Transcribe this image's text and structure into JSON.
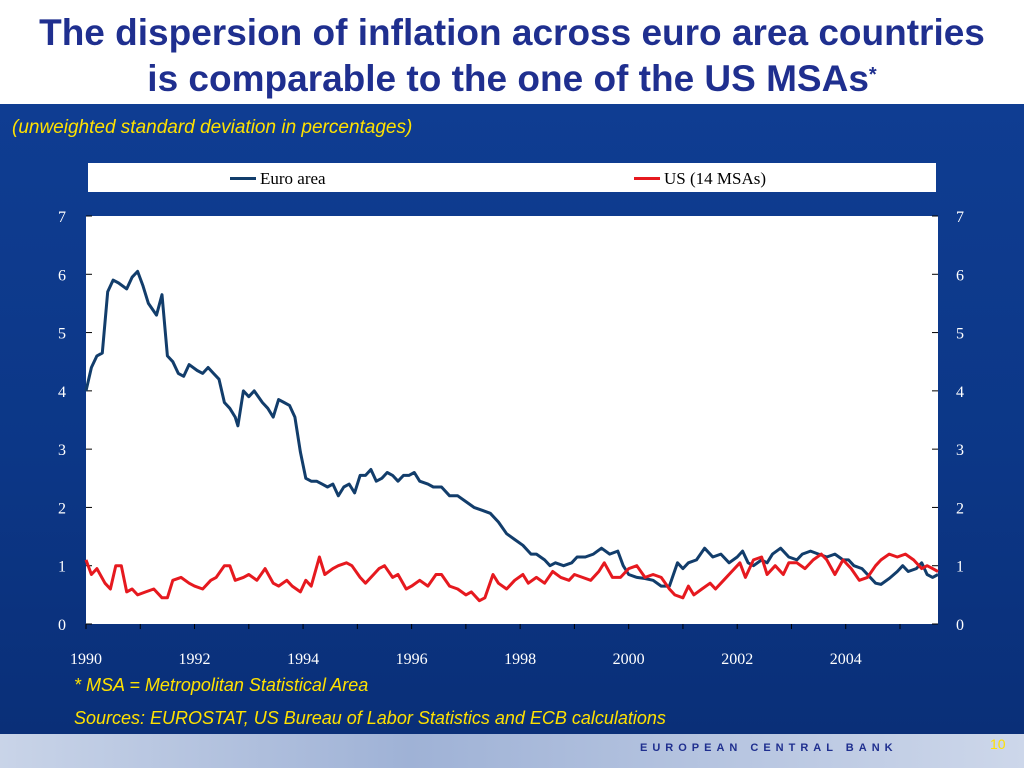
{
  "slide": {
    "title_line1": "The dispersion of inflation across euro area countries",
    "title_line2": "is comparable to the one of the US MSAs",
    "title_sup": "*",
    "subtitle": "(unweighted standard deviation in percentages)",
    "footnote": "* MSA = Metropolitan Statistical Area",
    "sources": "Sources: EUROSTAT, US Bureau of Labor Statistics and ECB calculations",
    "brand": "EUROPEAN CENTRAL BANK",
    "page_number": "10",
    "colors": {
      "title": "#1f2f8f",
      "background": "#0d3a8c",
      "yellow_text": "#ffe100"
    }
  },
  "chart_data": {
    "type": "line",
    "title": "",
    "xlabel": "",
    "ylabel": "",
    "ylim": [
      0,
      7
    ],
    "xlim": [
      1990,
      2005.7
    ],
    "y_ticks": [
      0,
      1,
      2,
      3,
      4,
      5,
      6,
      7
    ],
    "x_tick_labels": [
      "1990",
      "1992",
      "1994",
      "1996",
      "1998",
      "2000",
      "2002",
      "2004"
    ],
    "grid": false,
    "legend": "top",
    "series": [
      {
        "name": "Euro area",
        "color": "#123d6b",
        "points": [
          [
            1990.0,
            4.0
          ],
          [
            1990.1,
            4.4
          ],
          [
            1990.2,
            4.6
          ],
          [
            1990.3,
            4.65
          ],
          [
            1990.4,
            5.7
          ],
          [
            1990.5,
            5.9
          ],
          [
            1990.6,
            5.85
          ],
          [
            1990.75,
            5.75
          ],
          [
            1990.85,
            5.95
          ],
          [
            1990.95,
            6.05
          ],
          [
            1991.05,
            5.8
          ],
          [
            1991.15,
            5.5
          ],
          [
            1991.3,
            5.3
          ],
          [
            1991.4,
            5.65
          ],
          [
            1991.5,
            4.6
          ],
          [
            1991.6,
            4.5
          ],
          [
            1991.7,
            4.3
          ],
          [
            1991.8,
            4.25
          ],
          [
            1991.9,
            4.45
          ],
          [
            1992.05,
            4.35
          ],
          [
            1992.15,
            4.3
          ],
          [
            1992.25,
            4.4
          ],
          [
            1992.35,
            4.3
          ],
          [
            1992.45,
            4.2
          ],
          [
            1992.55,
            3.8
          ],
          [
            1992.65,
            3.7
          ],
          [
            1992.75,
            3.55
          ],
          [
            1992.8,
            3.4
          ],
          [
            1992.9,
            4.0
          ],
          [
            1993.0,
            3.9
          ],
          [
            1993.1,
            4.0
          ],
          [
            1993.25,
            3.8
          ],
          [
            1993.35,
            3.7
          ],
          [
            1993.45,
            3.55
          ],
          [
            1993.55,
            3.85
          ],
          [
            1993.65,
            3.8
          ],
          [
            1993.75,
            3.75
          ],
          [
            1993.85,
            3.55
          ],
          [
            1993.95,
            2.95
          ],
          [
            1994.05,
            2.5
          ],
          [
            1994.15,
            2.45
          ],
          [
            1994.25,
            2.45
          ],
          [
            1994.35,
            2.4
          ],
          [
            1994.45,
            2.35
          ],
          [
            1994.55,
            2.4
          ],
          [
            1994.65,
            2.2
          ],
          [
            1994.75,
            2.35
          ],
          [
            1994.85,
            2.4
          ],
          [
            1994.95,
            2.25
          ],
          [
            1995.05,
            2.55
          ],
          [
            1995.15,
            2.55
          ],
          [
            1995.25,
            2.65
          ],
          [
            1995.35,
            2.45
          ],
          [
            1995.45,
            2.5
          ],
          [
            1995.55,
            2.6
          ],
          [
            1995.65,
            2.55
          ],
          [
            1995.75,
            2.45
          ],
          [
            1995.85,
            2.55
          ],
          [
            1995.95,
            2.55
          ],
          [
            1996.05,
            2.6
          ],
          [
            1996.15,
            2.45
          ],
          [
            1996.3,
            2.4
          ],
          [
            1996.4,
            2.35
          ],
          [
            1996.55,
            2.35
          ],
          [
            1996.7,
            2.2
          ],
          [
            1996.85,
            2.2
          ],
          [
            1997.0,
            2.1
          ],
          [
            1997.15,
            2.0
          ],
          [
            1997.3,
            1.95
          ],
          [
            1997.45,
            1.9
          ],
          [
            1997.6,
            1.75
          ],
          [
            1997.75,
            1.55
          ],
          [
            1997.9,
            1.45
          ],
          [
            1998.05,
            1.35
          ],
          [
            1998.2,
            1.2
          ],
          [
            1998.3,
            1.2
          ],
          [
            1998.45,
            1.1
          ],
          [
            1998.55,
            1.0
          ],
          [
            1998.65,
            1.05
          ],
          [
            1998.8,
            1.0
          ],
          [
            1998.95,
            1.05
          ],
          [
            1999.05,
            1.15
          ],
          [
            1999.2,
            1.15
          ],
          [
            1999.35,
            1.2
          ],
          [
            1999.5,
            1.3
          ],
          [
            1999.65,
            1.2
          ],
          [
            1999.8,
            1.25
          ],
          [
            1999.9,
            1.0
          ],
          [
            2000.0,
            0.85
          ],
          [
            2000.15,
            0.8
          ],
          [
            2000.3,
            0.78
          ],
          [
            2000.45,
            0.75
          ],
          [
            2000.6,
            0.65
          ],
          [
            2000.75,
            0.65
          ],
          [
            2000.9,
            1.05
          ],
          [
            2001.0,
            0.95
          ],
          [
            2001.1,
            1.05
          ],
          [
            2001.25,
            1.1
          ],
          [
            2001.4,
            1.3
          ],
          [
            2001.55,
            1.15
          ],
          [
            2001.7,
            1.2
          ],
          [
            2001.85,
            1.05
          ],
          [
            2002.0,
            1.15
          ],
          [
            2002.1,
            1.25
          ],
          [
            2002.2,
            1.05
          ],
          [
            2002.3,
            1.0
          ],
          [
            2002.45,
            1.1
          ],
          [
            2002.55,
            1.05
          ],
          [
            2002.65,
            1.2
          ],
          [
            2002.8,
            1.3
          ],
          [
            2002.95,
            1.15
          ],
          [
            2003.1,
            1.1
          ],
          [
            2003.2,
            1.2
          ],
          [
            2003.35,
            1.25
          ],
          [
            2003.5,
            1.2
          ],
          [
            2003.65,
            1.15
          ],
          [
            2003.8,
            1.2
          ],
          [
            2003.95,
            1.1
          ],
          [
            2004.05,
            1.1
          ],
          [
            2004.15,
            1.0
          ],
          [
            2004.3,
            0.95
          ],
          [
            2004.4,
            0.85
          ],
          [
            2004.55,
            0.7
          ],
          [
            2004.65,
            0.68
          ],
          [
            2004.8,
            0.78
          ],
          [
            2004.95,
            0.9
          ],
          [
            2005.05,
            1.0
          ],
          [
            2005.15,
            0.9
          ],
          [
            2005.3,
            0.95
          ],
          [
            2005.4,
            1.05
          ],
          [
            2005.5,
            0.85
          ],
          [
            2005.6,
            0.8
          ],
          [
            2005.7,
            0.85
          ]
        ]
      },
      {
        "name": "US (14 MSAs)",
        "color": "#e6191f",
        "points": [
          [
            1990.0,
            1.1
          ],
          [
            1990.1,
            0.85
          ],
          [
            1990.2,
            0.95
          ],
          [
            1990.35,
            0.7
          ],
          [
            1990.45,
            0.6
          ],
          [
            1990.55,
            1.0
          ],
          [
            1990.65,
            1.0
          ],
          [
            1990.75,
            0.55
          ],
          [
            1990.85,
            0.6
          ],
          [
            1990.95,
            0.5
          ],
          [
            1991.1,
            0.55
          ],
          [
            1991.25,
            0.6
          ],
          [
            1991.4,
            0.45
          ],
          [
            1991.5,
            0.45
          ],
          [
            1991.6,
            0.75
          ],
          [
            1991.75,
            0.8
          ],
          [
            1991.9,
            0.7
          ],
          [
            1992.0,
            0.65
          ],
          [
            1992.15,
            0.6
          ],
          [
            1992.3,
            0.75
          ],
          [
            1992.4,
            0.8
          ],
          [
            1992.55,
            1.0
          ],
          [
            1992.65,
            1.0
          ],
          [
            1992.75,
            0.75
          ],
          [
            1992.9,
            0.8
          ],
          [
            1993.0,
            0.85
          ],
          [
            1993.15,
            0.75
          ],
          [
            1993.3,
            0.95
          ],
          [
            1993.45,
            0.7
          ],
          [
            1993.55,
            0.65
          ],
          [
            1993.7,
            0.75
          ],
          [
            1993.8,
            0.65
          ],
          [
            1993.95,
            0.55
          ],
          [
            1994.05,
            0.75
          ],
          [
            1994.15,
            0.65
          ],
          [
            1994.3,
            1.15
          ],
          [
            1994.4,
            0.85
          ],
          [
            1994.55,
            0.95
          ],
          [
            1994.65,
            1.0
          ],
          [
            1994.8,
            1.05
          ],
          [
            1994.9,
            1.0
          ],
          [
            1995.05,
            0.8
          ],
          [
            1995.15,
            0.7
          ],
          [
            1995.3,
            0.85
          ],
          [
            1995.4,
            0.95
          ],
          [
            1995.5,
            1.0
          ],
          [
            1995.65,
            0.8
          ],
          [
            1995.75,
            0.85
          ],
          [
            1995.9,
            0.6
          ],
          [
            1996.0,
            0.65
          ],
          [
            1996.15,
            0.75
          ],
          [
            1996.3,
            0.65
          ],
          [
            1996.45,
            0.85
          ],
          [
            1996.55,
            0.85
          ],
          [
            1996.7,
            0.65
          ],
          [
            1996.85,
            0.6
          ],
          [
            1997.0,
            0.5
          ],
          [
            1997.1,
            0.55
          ],
          [
            1997.25,
            0.4
          ],
          [
            1997.35,
            0.45
          ],
          [
            1997.5,
            0.85
          ],
          [
            1997.6,
            0.7
          ],
          [
            1997.75,
            0.6
          ],
          [
            1997.9,
            0.75
          ],
          [
            1998.05,
            0.85
          ],
          [
            1998.15,
            0.7
          ],
          [
            1998.3,
            0.8
          ],
          [
            1998.45,
            0.7
          ],
          [
            1998.6,
            0.9
          ],
          [
            1998.75,
            0.8
          ],
          [
            1998.9,
            0.75
          ],
          [
            1999.0,
            0.85
          ],
          [
            1999.15,
            0.8
          ],
          [
            1999.3,
            0.75
          ],
          [
            1999.45,
            0.9
          ],
          [
            1999.55,
            1.05
          ],
          [
            1999.7,
            0.8
          ],
          [
            1999.85,
            0.8
          ],
          [
            2000.0,
            0.95
          ],
          [
            2000.15,
            1.0
          ],
          [
            2000.3,
            0.8
          ],
          [
            2000.45,
            0.85
          ],
          [
            2000.6,
            0.8
          ],
          [
            2000.75,
            0.6
          ],
          [
            2000.85,
            0.5
          ],
          [
            2001.0,
            0.45
          ],
          [
            2001.1,
            0.65
          ],
          [
            2001.2,
            0.5
          ],
          [
            2001.35,
            0.6
          ],
          [
            2001.5,
            0.7
          ],
          [
            2001.6,
            0.6
          ],
          [
            2001.75,
            0.75
          ],
          [
            2001.9,
            0.9
          ],
          [
            2002.05,
            1.05
          ],
          [
            2002.15,
            0.8
          ],
          [
            2002.3,
            1.1
          ],
          [
            2002.45,
            1.15
          ],
          [
            2002.55,
            0.85
          ],
          [
            2002.7,
            1.0
          ],
          [
            2002.85,
            0.85
          ],
          [
            2002.95,
            1.05
          ],
          [
            2003.1,
            1.05
          ],
          [
            2003.25,
            0.95
          ],
          [
            2003.4,
            1.1
          ],
          [
            2003.55,
            1.2
          ],
          [
            2003.65,
            1.1
          ],
          [
            2003.8,
            0.85
          ],
          [
            2003.95,
            1.1
          ],
          [
            2004.1,
            0.95
          ],
          [
            2004.25,
            0.75
          ],
          [
            2004.4,
            0.8
          ],
          [
            2004.55,
            1.0
          ],
          [
            2004.65,
            1.1
          ],
          [
            2004.8,
            1.2
          ],
          [
            2004.95,
            1.15
          ],
          [
            2005.1,
            1.2
          ],
          [
            2005.25,
            1.1
          ],
          [
            2005.4,
            0.95
          ],
          [
            2005.5,
            1.0
          ],
          [
            2005.6,
            0.95
          ],
          [
            2005.7,
            0.9
          ]
        ]
      }
    ]
  }
}
